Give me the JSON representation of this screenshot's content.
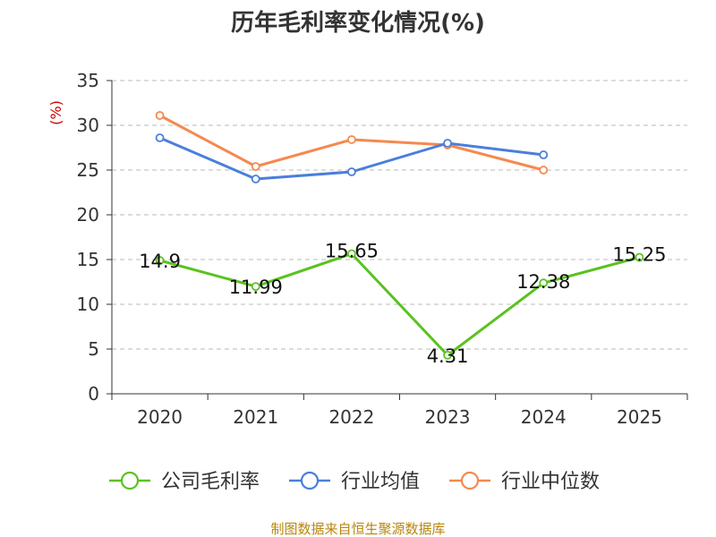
{
  "chart_data": {
    "type": "line",
    "title": "历年毛利率变化情况(%)",
    "ylabel": "(%)",
    "categories": [
      "2020",
      "2021",
      "2022",
      "2023",
      "2024",
      "2025"
    ],
    "ylim": [
      0,
      35
    ],
    "yticks": [
      "0",
      "5",
      "10",
      "15",
      "20",
      "25",
      "30",
      "35"
    ],
    "grid": true,
    "legend_position": "bottom",
    "series": [
      {
        "name": "公司毛利率",
        "color": "#5ac21f",
        "values": [
          14.9,
          11.99,
          15.65,
          4.31,
          12.38,
          15.25
        ],
        "labels": [
          "14.9",
          "11.99",
          "15.65",
          "4.31",
          "12.38",
          "15.25"
        ]
      },
      {
        "name": "行业均值",
        "color": "#4a7fdb",
        "values": [
          28.6,
          24.0,
          24.8,
          28.0,
          26.7,
          null
        ]
      },
      {
        "name": "行业中位数",
        "color": "#f5894f",
        "values": [
          31.1,
          25.4,
          28.4,
          27.8,
          25.0,
          null
        ]
      }
    ]
  },
  "source": "制图数据来自恒生聚源数据库"
}
